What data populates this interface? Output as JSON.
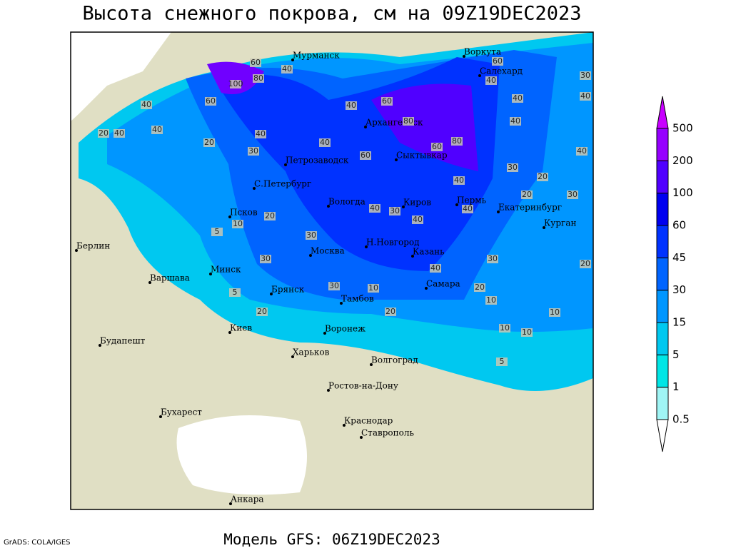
{
  "header": {
    "title": "Высота снежного покрова, см на 09Z19DEC2023"
  },
  "footer": {
    "model": "Модель GFS: 06Z19DEC2023",
    "credit": "GrADS: COLA/IGES"
  },
  "cities": [
    "Мурманск",
    "Воркута",
    "Салехард",
    "Архангельск",
    "Петрозаводск",
    "Сыктывкар",
    "С.Петербург",
    "Вологда",
    "Киров",
    "Пермь",
    "Екатеринбург",
    "Курган",
    "Псков",
    "Н.Новгород",
    "Казань",
    "Москва",
    "Минск",
    "Берлин",
    "Варшава",
    "Брянск",
    "Тамбов",
    "Самара",
    "Киев",
    "Воронеж",
    "Будапешт",
    "Харьков",
    "Волгоград",
    "Ростов-на-Дону",
    "Бухарест",
    "Краснодар",
    "Ставрополь",
    "Анкара"
  ],
  "legend": {
    "levels": [
      0.5,
      1,
      5,
      15,
      30,
      45,
      60,
      100,
      200,
      500
    ]
  },
  "contour_labels": [
    60,
    80,
    40,
    100,
    60,
    40,
    20,
    40,
    40,
    20,
    40,
    30,
    40,
    60,
    80,
    40,
    60,
    80,
    60,
    40,
    40,
    40,
    60,
    30,
    40,
    40,
    30,
    20,
    20,
    30,
    40,
    40,
    40,
    30,
    40,
    20,
    10,
    5,
    30,
    30,
    5,
    20,
    30,
    10,
    20,
    30,
    20,
    20,
    10,
    10,
    10,
    10,
    5,
    40
  ]
}
